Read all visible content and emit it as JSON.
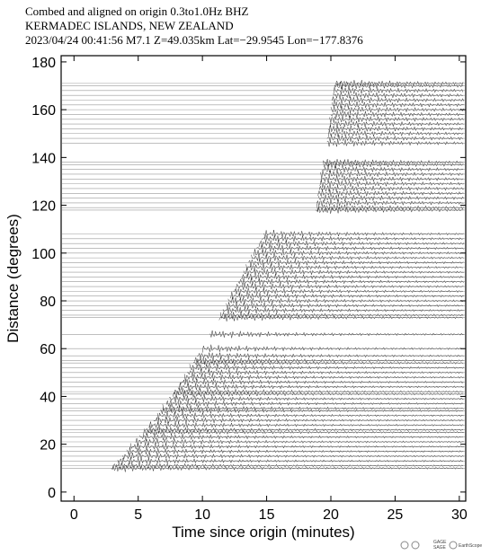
{
  "chart_data": {
    "type": "seismogram",
    "title_lines": [
      "Combed and aligned on origin  0.3to1.0Hz  BHZ",
      "KERMADEC ISLANDS, NEW ZEALAND",
      "2023/04/24  00:41:56  M7.1  Z=49.035km Lat=−29.9545 Lon=−177.8376"
    ],
    "x_label": "Time since origin (minutes)",
    "y_label": "Distance (degrees)",
    "xlim": [
      -1,
      30.5
    ],
    "ylim": [
      -3.8,
      182.6
    ],
    "xticks": [
      0,
      5,
      10,
      15,
      20,
      25,
      30
    ],
    "yticks": [
      0,
      20,
      40,
      60,
      80,
      100,
      120,
      140,
      160,
      180
    ],
    "color": "#333333",
    "distances": [
      10,
      11,
      13,
      15,
      17,
      19,
      21,
      23,
      25,
      26,
      28,
      30,
      32,
      34,
      35,
      37,
      39,
      41,
      42,
      44,
      46,
      48,
      50,
      52,
      54,
      55,
      57,
      60,
      66,
      73,
      74,
      76,
      78,
      80,
      82,
      84,
      86,
      88,
      90,
      92,
      94,
      96,
      98,
      100,
      102,
      104,
      106,
      108,
      118,
      119,
      121,
      123,
      125,
      127,
      129,
      131,
      133,
      135,
      137,
      138,
      146,
      148,
      150,
      152,
      154,
      156,
      158,
      160,
      162,
      164,
      166,
      168,
      170,
      171
    ],
    "onsets": [
      2.9,
      3.0,
      3.4,
      3.8,
      4.1,
      4.4,
      4.8,
      5.1,
      5.4,
      5.5,
      5.8,
      6.2,
      6.5,
      6.7,
      6.9,
      7.2,
      7.4,
      7.7,
      7.8,
      8.1,
      8.3,
      8.6,
      8.8,
      9.0,
      9.3,
      9.4,
      9.6,
      10.0,
      10.6,
      11.3,
      11.4,
      11.6,
      11.8,
      12.0,
      12.2,
      12.4,
      12.6,
      12.8,
      13.0,
      13.2,
      13.4,
      13.6,
      13.8,
      14.0,
      14.2,
      14.4,
      14.6,
      14.8,
      18.8,
      18.9,
      18.9,
      19.0,
      19.0,
      19.1,
      19.1,
      19.2,
      19.2,
      19.3,
      19.4,
      19.4,
      19.7,
      19.7,
      19.8,
      19.8,
      19.9,
      19.9,
      20.0,
      20.0,
      20.1,
      20.1,
      20.2,
      20.2,
      20.3,
      20.3
    ],
    "logos": [
      "GAGE",
      "SAGE",
      "EarthScope"
    ]
  }
}
